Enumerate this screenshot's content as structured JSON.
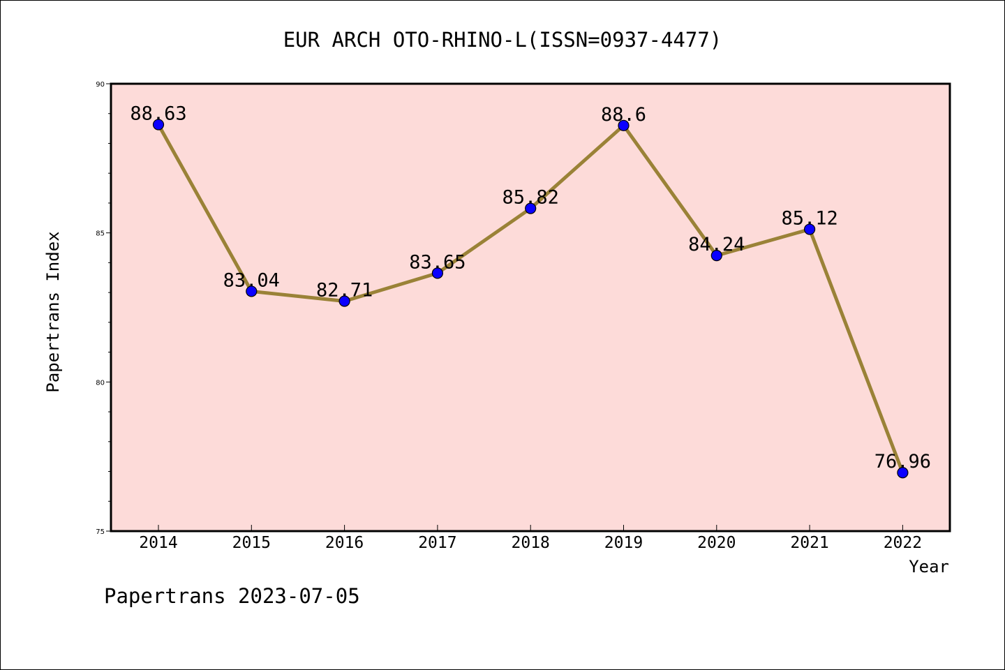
{
  "chart_data": {
    "type": "line",
    "title": "EUR ARCH OTO-RHINO-L(ISSN=0937-4477)",
    "xlabel": "Year",
    "ylabel": "Papertrans Index",
    "footer": "Papertrans 2023-07-05",
    "categories": [
      "2014",
      "2015",
      "2016",
      "2017",
      "2018",
      "2019",
      "2020",
      "2021",
      "2022"
    ],
    "series": [
      {
        "values": [
          88.63,
          83.04,
          82.71,
          83.65,
          85.82,
          88.6,
          84.24,
          85.12,
          76.96
        ],
        "data_labels": [
          "88.63",
          "83.04",
          "82.71",
          "83.65",
          "85.82",
          "88.6",
          "84.24",
          "85.12",
          "76.96"
        ]
      }
    ],
    "ylim": [
      75,
      90
    ],
    "y_major_ticks": [
      "75",
      "80",
      "85",
      "90"
    ],
    "y_minor_step": 1,
    "grid": false,
    "legend": "none",
    "colors": {
      "plot_background": "#fddbd9",
      "line": "#9a8237",
      "marker": "#0a00ff",
      "marker_edge": "#000000",
      "axis": "#000000",
      "text": "#000000"
    }
  }
}
